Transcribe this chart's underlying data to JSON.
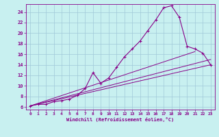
{
  "xlabel": "Windchill (Refroidissement éolien,°C)",
  "bg_color": "#c8f0f0",
  "grid_color": "#a0c8d8",
  "line_color": "#880088",
  "xlim": [
    -0.5,
    23.5
  ],
  "ylim": [
    5.5,
    25.5
  ],
  "xticks": [
    0,
    1,
    2,
    3,
    4,
    5,
    6,
    7,
    8,
    9,
    10,
    11,
    12,
    13,
    14,
    15,
    16,
    17,
    18,
    19,
    20,
    21,
    22,
    23
  ],
  "yticks": [
    6,
    8,
    10,
    12,
    14,
    16,
    18,
    20,
    22,
    24
  ],
  "series1_x": [
    0,
    1,
    2,
    3,
    4,
    5,
    6,
    7,
    8,
    9,
    10,
    11,
    12,
    13,
    14,
    15,
    16,
    17,
    18,
    19,
    20,
    21,
    22,
    23
  ],
  "series1_y": [
    6.2,
    6.5,
    6.5,
    7.0,
    7.2,
    7.5,
    8.2,
    9.5,
    12.5,
    10.5,
    11.5,
    13.5,
    15.5,
    17.0,
    18.5,
    20.5,
    22.5,
    24.8,
    25.2,
    23.0,
    17.5,
    17.0,
    16.2,
    14.0
  ],
  "line2_x0": 0,
  "line2_x1": 23,
  "line2_y0": 6.2,
  "line2_y1": 14.0,
  "line3_x0": 0,
  "line3_x1": 23,
  "line3_y0": 6.2,
  "line3_y1": 15.0,
  "line4_x0": 0,
  "line4_x1": 21,
  "line4_y0": 6.2,
  "line4_y1": 16.5
}
